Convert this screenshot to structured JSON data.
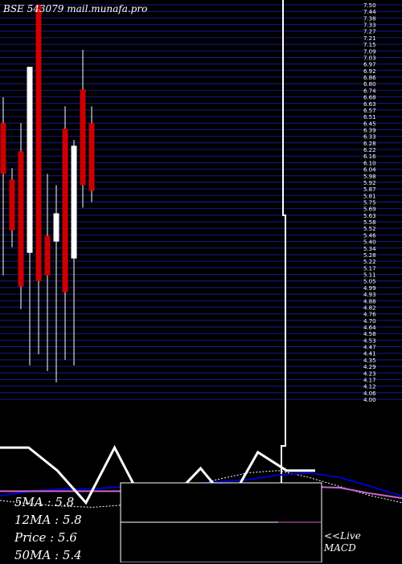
{
  "header": {
    "watermark": "BSE 543079 mail.munafa.pro"
  },
  "legend": {
    "ma5": "5MA : 5.8",
    "ma12": "12MA : 5.8",
    "price": "Price   : 5.6",
    "ma50": "50MA : 5.4"
  },
  "live": {
    "line1": "<<Live",
    "line2": "MACD"
  },
  "colors": {
    "background": "#000000",
    "grid": "#1a1a8c",
    "bearish": "#cc0000",
    "bullish": "#ffffff",
    "macd_signal": "#0000cc",
    "macd_hist": "#cc66cc"
  },
  "chart_data": [
    {
      "type": "candlestick",
      "title": "BSE 543079 mail.munafa.pro",
      "ylim": [
        4.0,
        7.5
      ],
      "candles": [
        {
          "open": 6.45,
          "high": 6.68,
          "low": 5.1,
          "close": 6.0,
          "color": "red"
        },
        {
          "open": 5.95,
          "high": 6.05,
          "low": 5.35,
          "close": 5.5,
          "color": "red"
        },
        {
          "open": 6.2,
          "high": 6.45,
          "low": 4.8,
          "close": 5.0,
          "color": "red"
        },
        {
          "open": 5.3,
          "high": 6.95,
          "low": 4.3,
          "close": 6.95,
          "color": "white"
        },
        {
          "open": 7.5,
          "high": 7.5,
          "low": 4.4,
          "close": 5.05,
          "color": "red"
        },
        {
          "open": 5.45,
          "high": 6.0,
          "low": 4.25,
          "close": 5.1,
          "color": "red"
        },
        {
          "open": 5.4,
          "high": 5.9,
          "low": 4.15,
          "close": 5.65,
          "color": "white"
        },
        {
          "open": 6.4,
          "high": 6.6,
          "low": 4.35,
          "close": 4.95,
          "color": "red"
        },
        {
          "open": 5.25,
          "high": 6.3,
          "low": 4.3,
          "close": 6.25,
          "color": "white"
        },
        {
          "open": 6.75,
          "high": 7.1,
          "low": 5.7,
          "close": 5.9,
          "color": "red"
        },
        {
          "open": 6.45,
          "high": 6.6,
          "low": 5.75,
          "close": 5.85,
          "color": "red"
        }
      ]
    },
    {
      "type": "line",
      "title": "MACD",
      "series": [
        {
          "values": [
            5.0,
            5.0,
            4.0,
            2.6,
            5.0,
            2.6,
            2.8,
            4.1,
            2.6,
            4.8,
            4.0,
            4.0
          ]
        },
        {
          "values": [
            2.9,
            3.1,
            3.2,
            3.2,
            3.3,
            3.3,
            3.4,
            3.5,
            3.6,
            3.8,
            3.9,
            3.7,
            3.3,
            2.9
          ]
        },
        {
          "values": [
            3.1,
            3.1,
            3.1,
            3.1,
            3.1,
            3.1,
            3.15,
            3.2,
            3.25,
            3.3,
            3.3,
            3.25,
            3.0,
            2.8
          ]
        },
        {
          "values": [
            2.7,
            2.55,
            2.45,
            2.4,
            2.5,
            2.8,
            3.2,
            3.6,
            3.9,
            4.0,
            3.7,
            3.3,
            2.9,
            2.6
          ]
        }
      ]
    }
  ]
}
